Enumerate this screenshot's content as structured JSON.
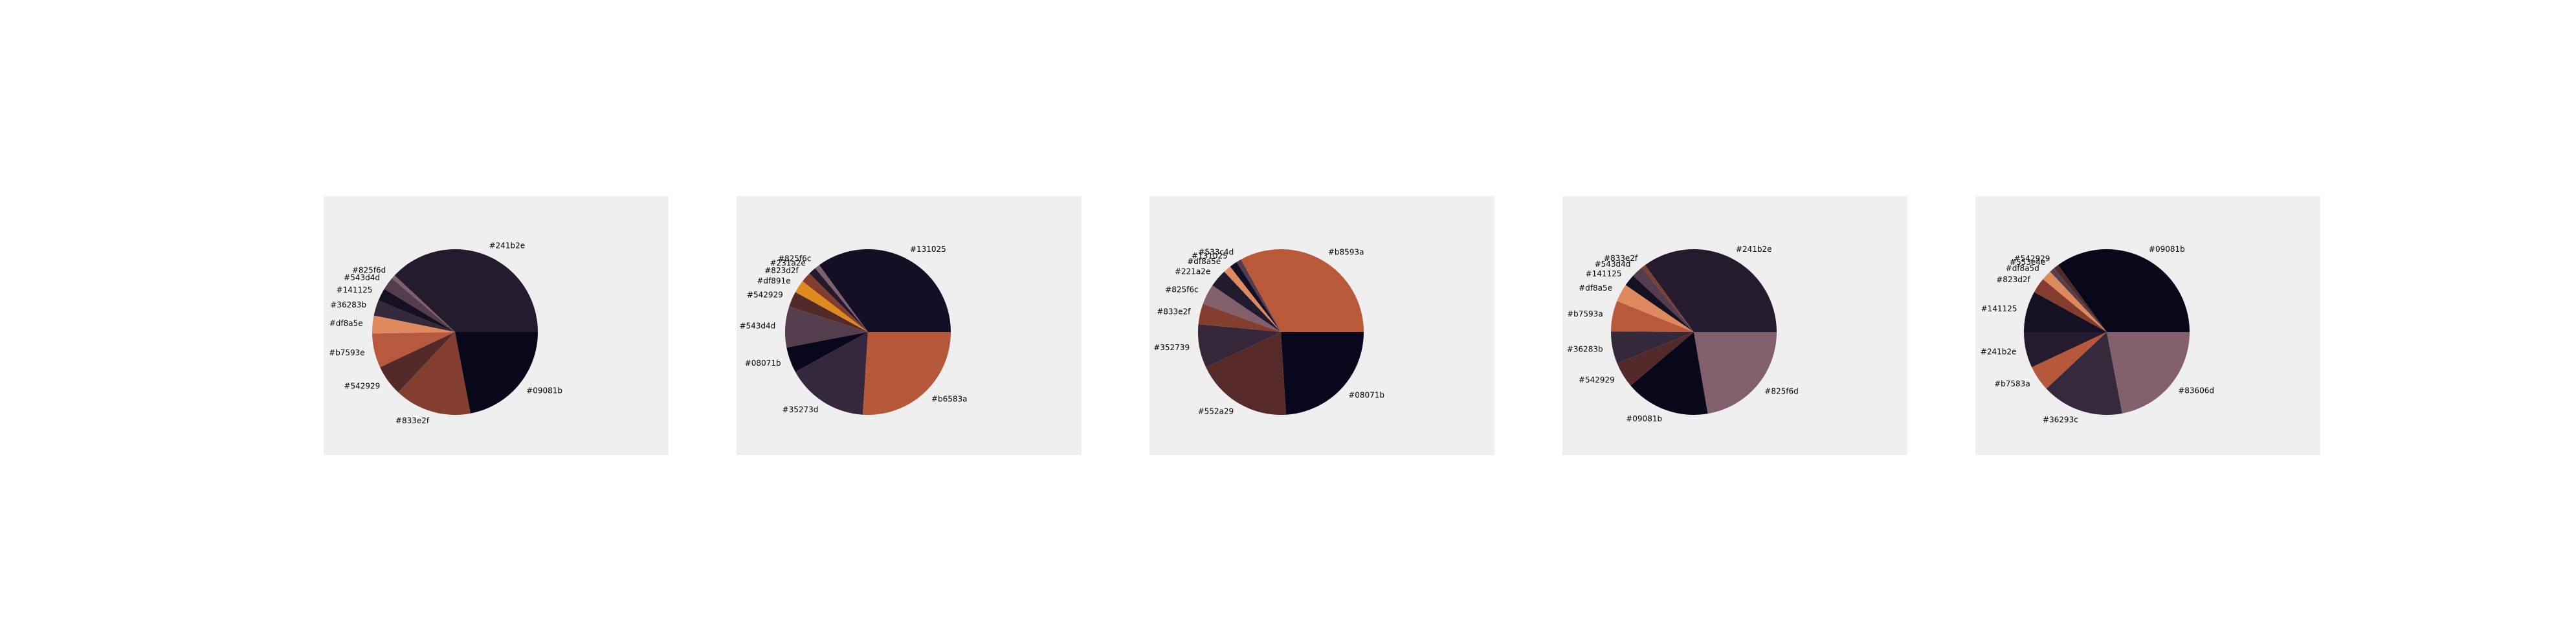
{
  "chart_data": [
    {
      "type": "pie",
      "slices": [
        {
          "label": "#241b2e",
          "value": 38,
          "color": "#241b2e"
        },
        {
          "label": "#825f6d",
          "value": 0.8,
          "color": "#825f6d"
        },
        {
          "label": "#543d4d",
          "value": 2.5,
          "color": "#543d4d"
        },
        {
          "label": "#141125",
          "value": 2.5,
          "color": "#141125"
        },
        {
          "label": "#36283b",
          "value": 3,
          "color": "#36283b"
        },
        {
          "label": "#df8a5e",
          "value": 3.5,
          "color": "#df8a5e"
        },
        {
          "label": "#b7593e",
          "value": 6.7,
          "color": "#b7593e"
        },
        {
          "label": "#542929",
          "value": 6,
          "color": "#542929"
        },
        {
          "label": "#833e2f",
          "value": 15,
          "color": "#833e2f"
        },
        {
          "label": "#09081b",
          "value": 22,
          "color": "#09081b"
        }
      ]
    },
    {
      "type": "pie",
      "slices": [
        {
          "label": "#131025",
          "value": 35,
          "color": "#131025"
        },
        {
          "label": "#825f6c",
          "value": 1,
          "color": "#825f6c"
        },
        {
          "label": "#231a2e",
          "value": 1.5,
          "color": "#231a2e"
        },
        {
          "label": "#823d2f",
          "value": 2,
          "color": "#823d2f"
        },
        {
          "label": "#df891e",
          "value": 2.5,
          "color": "#df891e"
        },
        {
          "label": "#542929",
          "value": 3,
          "color": "#542929"
        },
        {
          "label": "#543d4d",
          "value": 8,
          "color": "#543d4d"
        },
        {
          "label": "#08071b",
          "value": 5,
          "color": "#08071b"
        },
        {
          "label": "#35273d",
          "value": 16,
          "color": "#35273d"
        },
        {
          "label": "#b6583a",
          "value": 26,
          "color": "#b6583a"
        }
      ]
    },
    {
      "type": "pie",
      "slices": [
        {
          "label": "#b8593a",
          "value": 33,
          "color": "#b8593a"
        },
        {
          "label": "#533c4d",
          "value": 1,
          "color": "#533c4d"
        },
        {
          "label": "#131025",
          "value": 1.5,
          "color": "#131025"
        },
        {
          "label": "#df8a5e",
          "value": 1.5,
          "color": "#df8a5e"
        },
        {
          "label": "#221a2e",
          "value": 3.5,
          "color": "#221a2e"
        },
        {
          "label": "#825f6c",
          "value": 4,
          "color": "#825f6c"
        },
        {
          "label": "#833e2f",
          "value": 4,
          "color": "#833e2f"
        },
        {
          "label": "#352739",
          "value": 8.5,
          "color": "#352739"
        },
        {
          "label": "#552a29",
          "value": 19,
          "color": "#552a29"
        },
        {
          "label": "#08071b",
          "value": 24,
          "color": "#08071b"
        }
      ]
    },
    {
      "type": "pie",
      "slices": [
        {
          "label": "#241b2e",
          "value": 35,
          "color": "#241b2e"
        },
        {
          "label": "#833e2f",
          "value": 0.8,
          "color": "#833e2f"
        },
        {
          "label": "#543d4d",
          "value": 2.3,
          "color": "#543d4d"
        },
        {
          "label": "#141125",
          "value": 2.3,
          "color": "#141125"
        },
        {
          "label": "#df8a5e",
          "value": 3.5,
          "color": "#df8a5e"
        },
        {
          "label": "#b7593a",
          "value": 6,
          "color": "#b7593a"
        },
        {
          "label": "#36283b",
          "value": 6.3,
          "color": "#36283b"
        },
        {
          "label": "#542929",
          "value": 5,
          "color": "#542929"
        },
        {
          "label": "#09081b",
          "value": 16.5,
          "color": "#09081b"
        },
        {
          "label": "#825f6d",
          "value": 22.3,
          "color": "#825f6d"
        }
      ]
    },
    {
      "type": "pie",
      "slices": [
        {
          "label": "#09081b",
          "value": 35,
          "color": "#09081b"
        },
        {
          "label": "#542929",
          "value": 1,
          "color": "#542929"
        },
        {
          "label": "#553e4e",
          "value": 1,
          "color": "#553e4e"
        },
        {
          "label": "#df8a5d",
          "value": 2,
          "color": "#df8a5d"
        },
        {
          "label": "#823d2f",
          "value": 3,
          "color": "#823d2f"
        },
        {
          "label": "#141125",
          "value": 8,
          "color": "#141125"
        },
        {
          "label": "#241b2e",
          "value": 7,
          "color": "#241b2e"
        },
        {
          "label": "#b7583a",
          "value": 5,
          "color": "#b7583a"
        },
        {
          "label": "#36293c",
          "value": 16,
          "color": "#36293c"
        },
        {
          "label": "#83606d",
          "value": 22,
          "color": "#83606d"
        }
      ]
    }
  ]
}
